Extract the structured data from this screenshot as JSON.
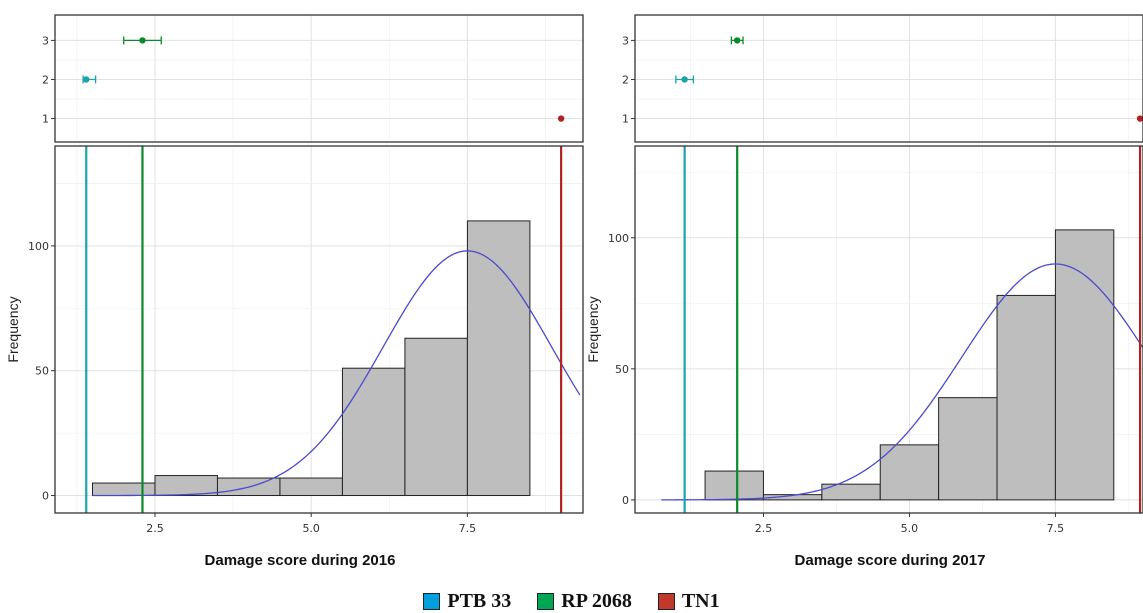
{
  "legend": [
    {
      "label": "PTB 33",
      "color": "#00a0dc"
    },
    {
      "label": "RP 2068",
      "color": "#00a651"
    },
    {
      "label": "TN1",
      "color": "#c0392b"
    }
  ],
  "chart_data": [
    {
      "type": "bar",
      "panel": "2016",
      "xlabel": "Damage score during 2016",
      "ylabel": "Frequency",
      "x_ticks": [
        "2.5",
        "5.0",
        "7.5"
      ],
      "y_ticks": [
        "0",
        "50",
        "100"
      ],
      "xlim": [
        0.9,
        9.35
      ],
      "ylim": [
        -7,
        140
      ],
      "grid": true,
      "histogram": {
        "bins": [
          {
            "x0": 1.5,
            "x1": 2.5,
            "count": 5
          },
          {
            "x0": 2.5,
            "x1": 3.5,
            "count": 8
          },
          {
            "x0": 3.5,
            "x1": 4.5,
            "count": 7
          },
          {
            "x0": 4.5,
            "x1": 5.5,
            "count": 7
          },
          {
            "x0": 5.5,
            "x1": 6.5,
            "count": 51
          },
          {
            "x0": 6.5,
            "x1": 7.5,
            "count": 63
          },
          {
            "x0": 7.5,
            "x1": 8.5,
            "count": 110
          }
        ]
      },
      "density_curve": {
        "mean": 7.5,
        "sd": 1.35,
        "peak": 98,
        "x_start": 1.5,
        "x_end": 9.3
      },
      "check_lines": [
        {
          "name": "PTB 33",
          "x": 1.4,
          "color": "#1ba3a8"
        },
        {
          "name": "RP 2068",
          "x": 2.3,
          "color": "#0a8a2a"
        },
        {
          "name": "TN1",
          "x": 9.0,
          "color": "#b22222"
        }
      ],
      "dot_panel": {
        "y_ticks": [
          "1",
          "2",
          "3"
        ],
        "ylim": [
          0.4,
          3.65
        ],
        "points": [
          {
            "y": 3,
            "x": 2.3,
            "err_low": 2.0,
            "err_high": 2.6,
            "color": "#0a8a2a"
          },
          {
            "y": 2,
            "x": 1.4,
            "err_low": 1.35,
            "err_high": 1.55,
            "color": "#1ba3a8"
          },
          {
            "y": 1,
            "x": 9.0,
            "err_low": 9.0,
            "err_high": 9.0,
            "color": "#b22222"
          }
        ]
      }
    },
    {
      "type": "bar",
      "panel": "2017",
      "xlabel": "Damage score during 2017",
      "ylabel": "Frequency",
      "x_ticks": [
        "2.5",
        "5.0",
        "7.5"
      ],
      "y_ticks": [
        "0",
        "50",
        "100"
      ],
      "xlim": [
        0.3,
        9.0
      ],
      "ylim": [
        -5,
        135
      ],
      "grid": true,
      "histogram": {
        "bins": [
          {
            "x0": 1.5,
            "x1": 2.5,
            "count": 11
          },
          {
            "x0": 2.5,
            "x1": 3.5,
            "count": 2
          },
          {
            "x0": 3.5,
            "x1": 4.5,
            "count": 6
          },
          {
            "x0": 4.5,
            "x1": 5.5,
            "count": 21
          },
          {
            "x0": 5.5,
            "x1": 6.5,
            "count": 39
          },
          {
            "x0": 6.5,
            "x1": 7.5,
            "count": 78
          },
          {
            "x0": 7.5,
            "x1": 8.5,
            "count": 103
          }
        ]
      },
      "density_curve": {
        "mean": 7.5,
        "sd": 1.6,
        "peak": 90,
        "x_start": 0.75,
        "x_end": 9.0
      },
      "check_lines": [
        {
          "name": "PTB 33",
          "x": 1.15,
          "color": "#1ba3a8"
        },
        {
          "name": "RP 2068",
          "x": 2.05,
          "color": "#0a8a2a"
        },
        {
          "name": "TN1",
          "x": 8.95,
          "color": "#b22222"
        }
      ],
      "dot_panel": {
        "y_ticks": [
          "1",
          "2",
          "3"
        ],
        "ylim": [
          0.4,
          3.65
        ],
        "points": [
          {
            "y": 3,
            "x": 2.05,
            "err_low": 1.95,
            "err_high": 2.15,
            "color": "#0a8a2a"
          },
          {
            "y": 2,
            "x": 1.15,
            "err_low": 1.0,
            "err_high": 1.3,
            "color": "#1ba3a8"
          },
          {
            "y": 1,
            "x": 8.95,
            "err_low": 8.95,
            "err_high": 8.95,
            "color": "#b22222"
          }
        ]
      }
    }
  ]
}
